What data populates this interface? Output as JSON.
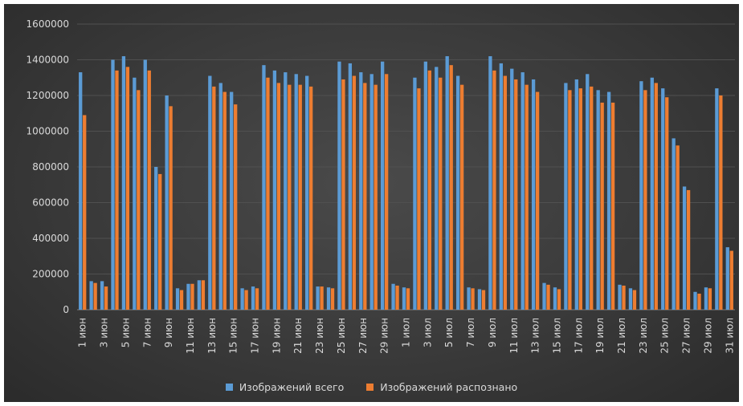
{
  "chart_data": {
    "type": "bar",
    "ylim": [
      0,
      1600000
    ],
    "yticks": [
      0,
      200000,
      400000,
      600000,
      800000,
      1000000,
      1200000,
      1400000,
      1600000
    ],
    "grid": true,
    "legend_position": "bottom",
    "categories": [
      "1 июн",
      "2 июн",
      "3 июн",
      "4 июн",
      "5 июн",
      "6 июн",
      "7 июн",
      "8 июн",
      "9 июн",
      "10 июн",
      "11 июн",
      "12 июн",
      "13 июн",
      "14 июн",
      "15 июн",
      "16 июн",
      "17 июн",
      "18 июн",
      "19 июн",
      "20 июн",
      "21 июн",
      "22 июн",
      "23 июн",
      "24 июн",
      "25 июн",
      "26 июн",
      "27 июн",
      "28 июн",
      "29 июн",
      "30 июн",
      "1 июл",
      "2 июл",
      "3 июл",
      "4 июл",
      "5 июл",
      "6 июл",
      "7 июл",
      "8 июл",
      "9 июл",
      "10 июл",
      "11 июл",
      "12 июл",
      "13 июл",
      "14 июл",
      "15 июл",
      "16 июл",
      "17 июл",
      "18 июл",
      "19 июл",
      "20 июл",
      "21 июл",
      "22 июл",
      "23 июл",
      "24 июл",
      "25 июл",
      "26 июл",
      "27 июл",
      "28 июл",
      "29 июл",
      "30 июл",
      "31 июл"
    ],
    "series": [
      {
        "name": "Изображений всего",
        "color": "#5b9bd5",
        "values": [
          1330000,
          160000,
          160000,
          1400000,
          1420000,
          1300000,
          1400000,
          800000,
          1200000,
          120000,
          145000,
          165000,
          1310000,
          1270000,
          1220000,
          120000,
          130000,
          1370000,
          1340000,
          1330000,
          1320000,
          1310000,
          130000,
          125000,
          1390000,
          1380000,
          1330000,
          1320000,
          1390000,
          145000,
          125000,
          1300000,
          1390000,
          1360000,
          1420000,
          1310000,
          125000,
          115000,
          1420000,
          1380000,
          1350000,
          1330000,
          1290000,
          150000,
          125000,
          1270000,
          1290000,
          1320000,
          1230000,
          1220000,
          140000,
          120000,
          1280000,
          1300000,
          1240000,
          960000,
          690000,
          100000,
          125000,
          1240000,
          350000
        ]
      },
      {
        "name": "Изображений распознано",
        "color": "#ed7d31",
        "values": [
          1090000,
          150000,
          130000,
          1340000,
          1360000,
          1230000,
          1340000,
          760000,
          1140000,
          110000,
          145000,
          165000,
          1250000,
          1220000,
          1150000,
          110000,
          120000,
          1300000,
          1270000,
          1260000,
          1260000,
          1250000,
          130000,
          120000,
          1290000,
          1310000,
          1270000,
          1260000,
          1320000,
          135000,
          120000,
          1240000,
          1340000,
          1300000,
          1370000,
          1260000,
          120000,
          110000,
          1340000,
          1310000,
          1290000,
          1260000,
          1220000,
          140000,
          115000,
          1230000,
          1240000,
          1250000,
          1160000,
          1160000,
          135000,
          110000,
          1230000,
          1270000,
          1190000,
          920000,
          670000,
          90000,
          120000,
          1200000,
          330000
        ]
      }
    ]
  }
}
